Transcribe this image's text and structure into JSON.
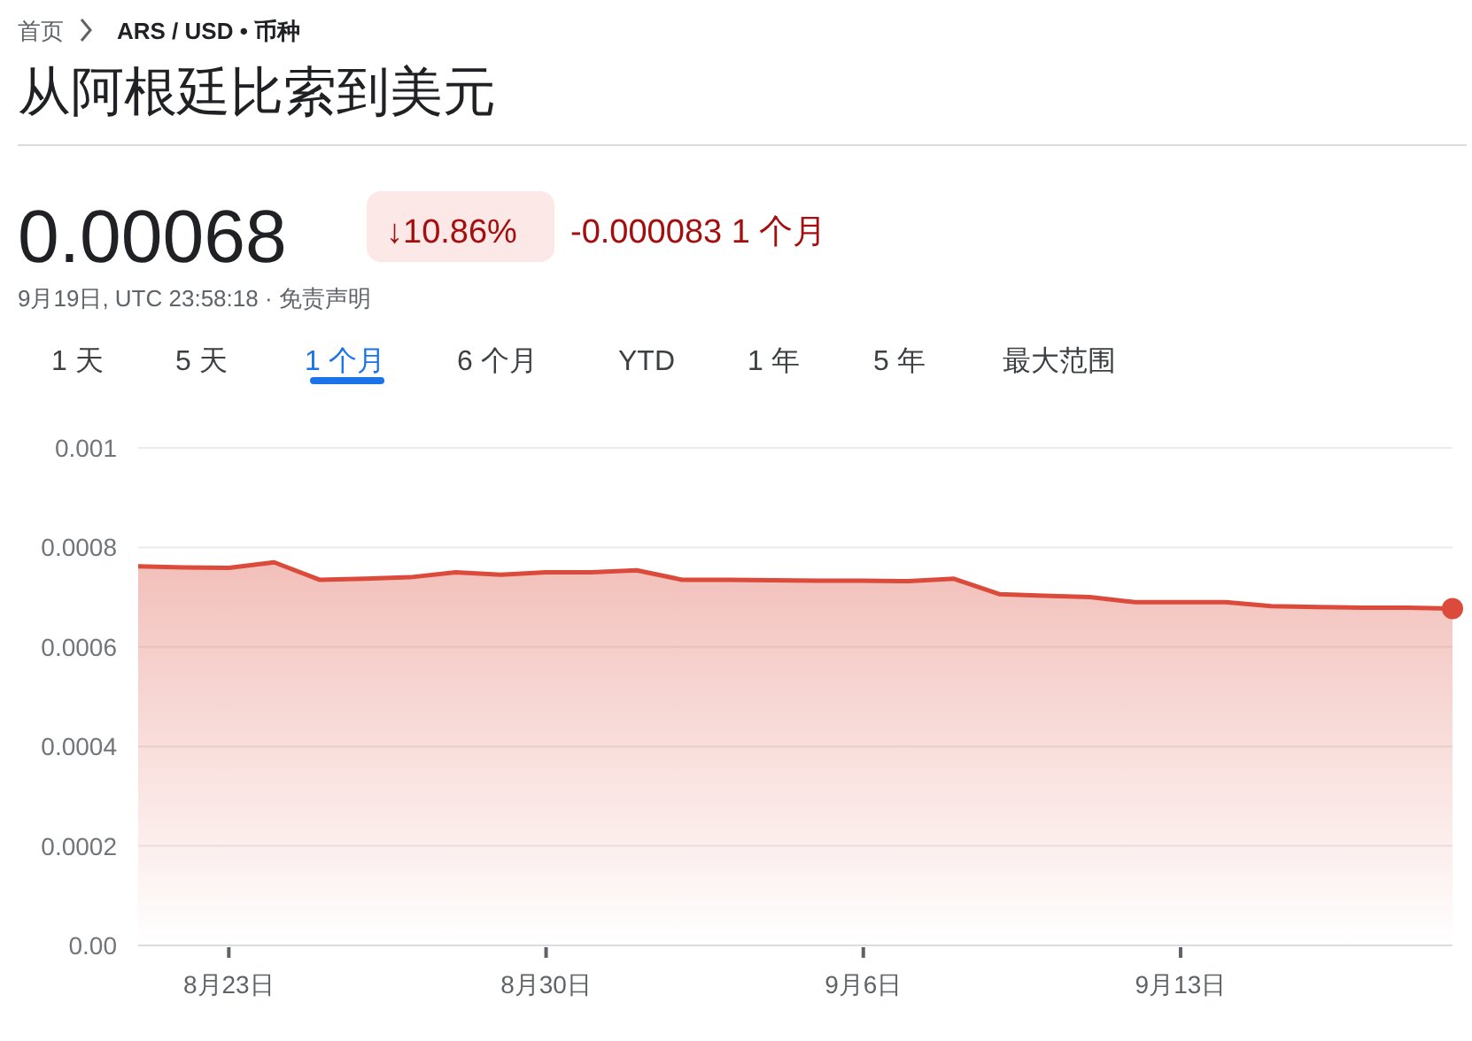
{
  "chart_data": {
    "type": "area",
    "title": "从阿根廷比索到美元",
    "annotations": [
      "首页",
      "ARS / USD • 币种",
      "0.00068",
      "↓10.86%",
      "-0.000083 1 个月",
      "9月19日, UTC 23:58:18 · 免责声明",
      "1 天",
      "5 天",
      "1 个月",
      "6 个月",
      "YTD",
      "1 年",
      "5 年",
      "最大范围"
    ],
    "x": [
      "--08-21",
      "--08-22",
      "--08-23",
      "--08-24",
      "--08-25",
      "--08-26",
      "--08-27",
      "--08-28",
      "--08-29",
      "--08-30",
      "--08-31",
      "--09-01",
      "--09-02",
      "--09-03",
      "--09-04",
      "--09-05",
      "--09-06",
      "--09-07",
      "--09-08",
      "--09-09",
      "--09-10",
      "--09-11",
      "--09-12",
      "--09-13",
      "--09-14",
      "--09-15",
      "--09-16",
      "--09-17",
      "--09-18",
      "--09-19"
    ],
    "series": [
      {
        "color": "#db4a3b",
        "values": [
          0.000762,
          0.00076,
          0.000759,
          0.00077,
          0.000735,
          0.000737,
          0.00074,
          0.00075,
          0.000745,
          0.00075,
          0.00075,
          0.000754,
          0.000735,
          0.000735,
          0.000734,
          0.000733,
          0.000733,
          0.000732,
          0.000737,
          0.000706,
          0.000703,
          0.0007,
          0.00069,
          0.00069,
          0.00069,
          0.000682,
          0.00068,
          0.000679,
          0.000679,
          0.000677
        ]
      },
      {
        "type": "scatter",
        "color": "#db4a3b",
        "x": [
          "--09-19"
        ],
        "values": [
          0.000677
        ]
      }
    ],
    "xlim": [
      "--08-21",
      "--09-19"
    ],
    "xticks": [
      {
        "value": "--08-23",
        "label": "8月23日"
      },
      {
        "value": "--08-30",
        "label": "8月30日"
      },
      {
        "value": "--09-06",
        "label": "9月6日"
      },
      {
        "value": "--09-13",
        "label": "9月13日"
      }
    ],
    "ylim": [
      0,
      0.001
    ],
    "yticks": [
      {
        "value": 0,
        "label": "0.00"
      },
      0.0002,
      0.0004,
      0.0006,
      0.0008,
      0.001
    ],
    "grid": "y",
    "line_style": "solid"
  }
}
